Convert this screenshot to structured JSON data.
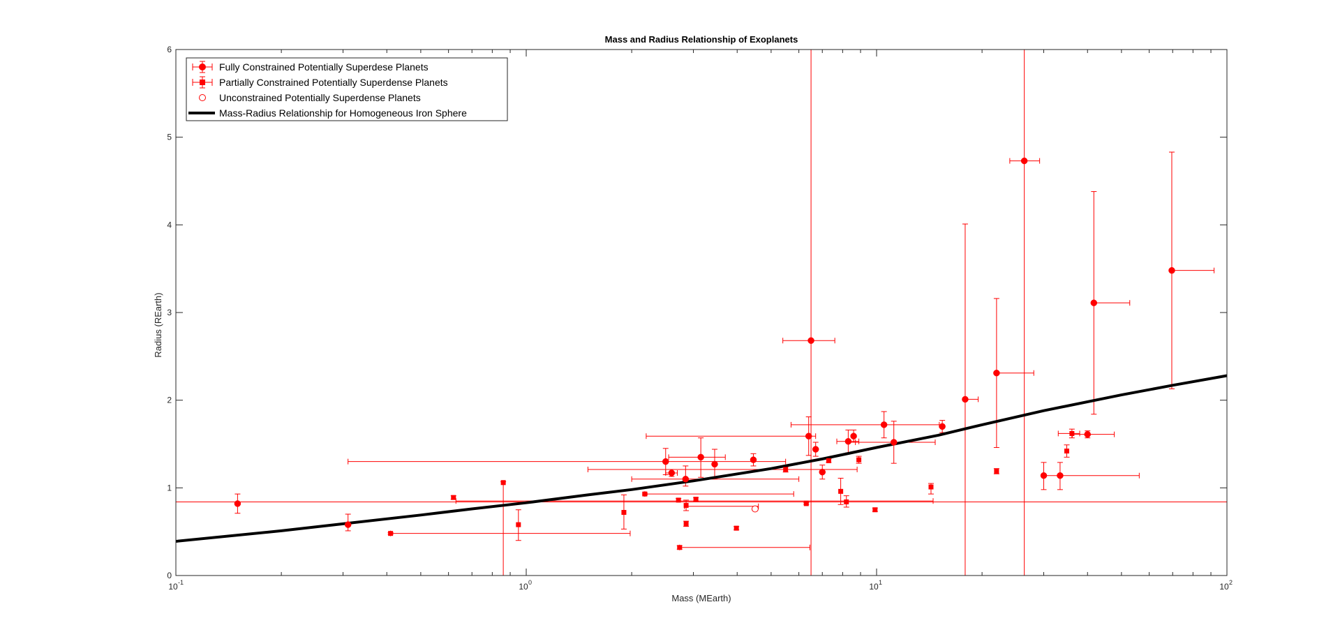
{
  "chart_data": {
    "type": "scatter",
    "title": "Mass and Radius Relationship of Exoplanets",
    "xlabel": "Mass (MEarth)",
    "ylabel": "Radius (REarth)",
    "xscale": "log",
    "xlim": [
      0.1,
      100
    ],
    "ylim": [
      0,
      6
    ],
    "xticks": [
      {
        "base": "10",
        "exp": "-1",
        "value": 0.1
      },
      {
        "base": "10",
        "exp": "0",
        "value": 1
      },
      {
        "base": "10",
        "exp": "1",
        "value": 10
      },
      {
        "base": "10",
        "exp": "2",
        "value": 100
      }
    ],
    "yticks": [
      0,
      1,
      2,
      3,
      4,
      5,
      6
    ],
    "grid": false,
    "legend_position": "top-left",
    "colors": {
      "points": "#ff0000",
      "curve": "#000000",
      "axes": "#262626"
    },
    "legend": [
      {
        "label": "Fully Constrained Potentially Superdese Planets",
        "marker": "circle-filled"
      },
      {
        "label": "Partially Constrained Potentially Superdense Planets",
        "marker": "square-filled"
      },
      {
        "label": "Unconstrained Potentially Superdense Planets",
        "marker": "circle-open"
      },
      {
        "label": "Mass-Radius Relationship for Homogeneous Iron Sphere",
        "marker": "line"
      }
    ],
    "series": [
      {
        "name": "Fully Constrained Potentially Superdese Planets",
        "marker": "circle-filled",
        "points": [
          {
            "x": 0.15,
            "y": 0.82,
            "xlo": 0.15,
            "xhi": 0.15,
            "ylo": 0.71,
            "yhi": 0.93
          },
          {
            "x": 0.31,
            "y": 0.58,
            "xlo": 0.31,
            "xhi": 0.31,
            "ylo": 0.51,
            "yhi": 0.7
          },
          {
            "x": 2.5,
            "y": 1.3,
            "xlo": 2.5,
            "xhi": 2.5,
            "ylo": 1.15,
            "yhi": 1.45
          },
          {
            "x": 2.6,
            "y": 1.17,
            "xlo": 2.5,
            "xhi": 2.7,
            "ylo": 1.13,
            "yhi": 1.21
          },
          {
            "x": 2.85,
            "y": 1.1,
            "xlo": 2.85,
            "xhi": 2.85,
            "ylo": 1.02,
            "yhi": 1.25
          },
          {
            "x": 3.15,
            "y": 1.35,
            "xlo": 2.55,
            "xhi": 3.7,
            "ylo": 1.12,
            "yhi": 1.57
          },
          {
            "x": 3.45,
            "y": 1.27,
            "xlo": 3.45,
            "xhi": 3.45,
            "ylo": 1.1,
            "yhi": 1.44
          },
          {
            "x": 4.45,
            "y": 1.32,
            "xlo": 4.45,
            "xhi": 4.45,
            "ylo": 1.25,
            "yhi": 1.39
          },
          {
            "x": 6.4,
            "y": 1.59,
            "xlo": 2.2,
            "xhi": 6.7,
            "ylo": 1.37,
            "yhi": 1.81
          },
          {
            "x": 6.5,
            "y": 2.68,
            "xlo": 5.4,
            "xhi": 7.6,
            "ylo": 0.0,
            "yhi": 6.0
          },
          {
            "x": 6.7,
            "y": 1.44,
            "xlo": 6.7,
            "xhi": 6.7,
            "ylo": 1.36,
            "yhi": 1.52
          },
          {
            "x": 7.0,
            "y": 1.18,
            "xlo": 7.0,
            "xhi": 7.0,
            "ylo": 1.1,
            "yhi": 1.26
          },
          {
            "x": 8.3,
            "y": 1.53,
            "xlo": 7.7,
            "xhi": 8.9,
            "ylo": 1.4,
            "yhi": 1.66
          },
          {
            "x": 8.6,
            "y": 1.59,
            "xlo": 8.6,
            "xhi": 8.6,
            "ylo": 1.52,
            "yhi": 1.66
          },
          {
            "x": 10.5,
            "y": 1.72,
            "xlo": 5.7,
            "xhi": 15.1,
            "ylo": 1.57,
            "yhi": 1.87
          },
          {
            "x": 11.2,
            "y": 1.52,
            "xlo": 8.7,
            "xhi": 14.7,
            "ylo": 1.28,
            "yhi": 1.76
          },
          {
            "x": 15.4,
            "y": 1.7,
            "xlo": 15.4,
            "xhi": 15.4,
            "ylo": 1.63,
            "yhi": 1.77
          },
          {
            "x": 17.9,
            "y": 2.01,
            "xlo": 17.9,
            "xhi": 19.5,
            "ylo": 0.0,
            "yhi": 4.01
          },
          {
            "x": 22.0,
            "y": 2.31,
            "xlo": 22.0,
            "xhi": 28.1,
            "ylo": 1.46,
            "yhi": 3.16
          },
          {
            "x": 26.4,
            "y": 4.73,
            "xlo": 24.0,
            "xhi": 29.2,
            "ylo": 0.0,
            "yhi": 6.0
          },
          {
            "x": 30.0,
            "y": 1.14,
            "xlo": 30.0,
            "xhi": 30.0,
            "ylo": 0.98,
            "yhi": 1.29
          },
          {
            "x": 33.4,
            "y": 1.14,
            "xlo": 29.7,
            "xhi": 56.2,
            "ylo": 0.98,
            "yhi": 1.29
          },
          {
            "x": 40.0,
            "y": 1.61,
            "xlo": 36.2,
            "xhi": 47.7,
            "ylo": 1.57,
            "yhi": 1.65
          },
          {
            "x": 41.7,
            "y": 3.11,
            "xlo": 41.7,
            "xhi": 52.8,
            "ylo": 1.84,
            "yhi": 4.38
          },
          {
            "x": 69.6,
            "y": 3.48,
            "xlo": 69.6,
            "xhi": 91.9,
            "ylo": 2.13,
            "yhi": 4.83
          }
        ]
      },
      {
        "name": "Partially Constrained Potentially Superdense Planets",
        "marker": "square-filled",
        "points": [
          {
            "x": 0.41,
            "y": 0.48,
            "xlo": 0.41,
            "xhi": 1.98,
            "ylo": 0.47,
            "yhi": 0.49
          },
          {
            "x": 0.62,
            "y": 0.89,
            "xlo": 0.62,
            "xhi": 0.62,
            "ylo": 0.87,
            "yhi": 0.91
          },
          {
            "x": 0.86,
            "y": 1.06,
            "xlo": 0.86,
            "xhi": 0.86,
            "ylo": 0.0,
            "yhi": 1.07
          },
          {
            "x": 0.95,
            "y": 0.58,
            "xlo": 0.95,
            "xhi": 0.95,
            "ylo": 0.4,
            "yhi": 0.75
          },
          {
            "x": 1.9,
            "y": 0.72,
            "xlo": 1.9,
            "xhi": 1.9,
            "ylo": 0.53,
            "yhi": 0.92
          },
          {
            "x": 2.18,
            "y": 0.93,
            "xlo": 2.18,
            "xhi": 5.8,
            "ylo": 0.92,
            "yhi": 0.94
          },
          {
            "x": 2.72,
            "y": 0.86,
            "xlo": 2.72,
            "xhi": 2.72,
            "ylo": 0.84,
            "yhi": 0.88
          },
          {
            "x": 2.74,
            "y": 0.32,
            "xlo": 2.74,
            "xhi": 6.45,
            "ylo": 0.3,
            "yhi": 0.34
          },
          {
            "x": 2.86,
            "y": 0.8,
            "xlo": 2.86,
            "xhi": 2.86,
            "ylo": 0.74,
            "yhi": 0.86
          },
          {
            "x": 2.86,
            "y": 0.59,
            "xlo": 2.86,
            "xhi": 2.86,
            "ylo": 0.56,
            "yhi": 0.62
          },
          {
            "x": 3.05,
            "y": 0.87,
            "xlo": 3.05,
            "xhi": 3.05,
            "ylo": 0.85,
            "yhi": 0.89
          },
          {
            "x": 3.98,
            "y": 0.54,
            "xlo": 3.98,
            "xhi": 3.98,
            "ylo": 0.52,
            "yhi": 0.56
          },
          {
            "x": 5.5,
            "y": 1.21,
            "xlo": 1.5,
            "xhi": 8.8,
            "ylo": 1.18,
            "yhi": 1.24
          },
          {
            "x": 6.3,
            "y": 0.82,
            "xlo": 6.3,
            "xhi": 6.3,
            "ylo": 0.81,
            "yhi": 0.83
          },
          {
            "x": 7.3,
            "y": 1.31,
            "xlo": 7.3,
            "xhi": 7.3,
            "ylo": 1.29,
            "yhi": 1.33
          },
          {
            "x": 7.9,
            "y": 0.96,
            "xlo": 7.9,
            "xhi": 7.9,
            "ylo": 0.81,
            "yhi": 1.11
          },
          {
            "x": 8.2,
            "y": 0.84,
            "xlo": 8.2,
            "xhi": 8.2,
            "ylo": 0.78,
            "yhi": 0.91
          },
          {
            "x": 8.9,
            "y": 1.32,
            "xlo": 8.9,
            "xhi": 8.9,
            "ylo": 1.28,
            "yhi": 1.36
          },
          {
            "x": 9.9,
            "y": 0.75,
            "xlo": 9.9,
            "xhi": 9.9,
            "ylo": 0.73,
            "yhi": 0.77
          },
          {
            "x": 14.3,
            "y": 1.01,
            "xlo": 14.3,
            "xhi": 14.3,
            "ylo": 0.93,
            "yhi": 1.05
          },
          {
            "x": 22.0,
            "y": 1.19,
            "xlo": 22.0,
            "xhi": 22.0,
            "ylo": 1.16,
            "yhi": 1.22
          },
          {
            "x": 34.9,
            "y": 1.42,
            "xlo": 34.9,
            "xhi": 34.9,
            "ylo": 1.35,
            "yhi": 1.49
          },
          {
            "x": 36.1,
            "y": 1.62,
            "xlo": 33.0,
            "xhi": 38.0,
            "ylo": 1.57,
            "yhi": 1.67
          }
        ]
      },
      {
        "name": "Unconstrained Potentially Superdense Planets",
        "marker": "circle-open",
        "points": [
          {
            "x": 4.5,
            "y": 0.76
          }
        ]
      }
    ],
    "extra_errorbars": [
      {
        "x": 3.0,
        "y": 1.3,
        "xlo": 0.31,
        "xhi": 5.5
      },
      {
        "x": 4.0,
        "y": 1.1,
        "xlo": 2.0,
        "xhi": 6.0
      },
      {
        "x": 3.5,
        "y": 0.84,
        "xlo": 0.0001,
        "xhi": 100000
      },
      {
        "x": 2.6,
        "y": 0.85,
        "xlo": 0.63,
        "xhi": 14.5
      },
      {
        "x": 3.9,
        "y": 0.79,
        "xlo": 2.83,
        "xhi": 4.6
      }
    ],
    "curve": {
      "name": "Mass-Radius Relationship for Homogeneous Iron Sphere",
      "x": [
        0.1,
        0.2,
        0.3,
        0.5,
        0.7,
        1.0,
        1.5,
        2.0,
        3.0,
        5.0,
        7.0,
        10.0,
        15.0,
        20.0,
        30.0,
        50.0,
        70.0,
        100.0
      ],
      "y": [
        0.39,
        0.51,
        0.59,
        0.69,
        0.76,
        0.83,
        0.92,
        0.98,
        1.08,
        1.22,
        1.33,
        1.46,
        1.6,
        1.72,
        1.88,
        2.06,
        2.17,
        2.28
      ]
    }
  }
}
